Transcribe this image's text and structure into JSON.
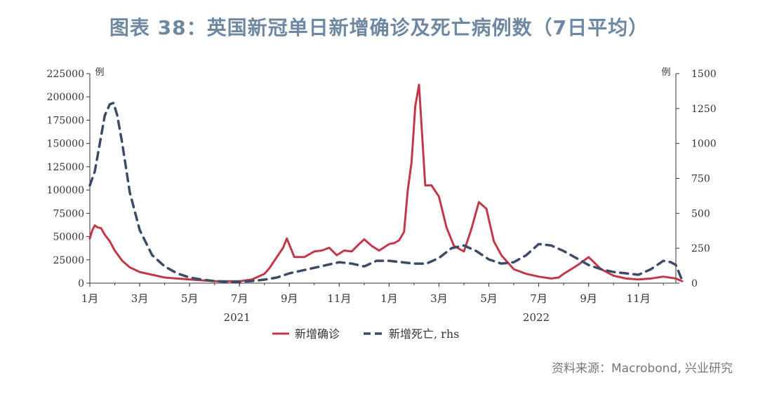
{
  "title": "图表 38：英国新冠单日新增确诊及死亡病例数（7日平均）",
  "source": "资料来源：Macrobond, 兴业研究",
  "colors": {
    "cases": "#c0394a",
    "deaths": "#3c4b66",
    "title": "#6f88a2",
    "axis": "#333333"
  },
  "chart_data": {
    "type": "line",
    "x_ticks": [
      "1月",
      "3月",
      "5月",
      "7月",
      "9月",
      "11月",
      "1月",
      "3月",
      "5月",
      "7月",
      "9月",
      "11月"
    ],
    "year_labels": [
      "2021",
      "2022"
    ],
    "y_left": {
      "unit_label": "例",
      "min": 0,
      "max": 225000,
      "ticks": [
        "0",
        "25000",
        "50000",
        "75000",
        "100000",
        "125000",
        "150000",
        "175000",
        "200000",
        "225000"
      ]
    },
    "y_right": {
      "unit_label": "例",
      "min": 0,
      "max": 1500,
      "ticks": [
        "0",
        "250",
        "500",
        "750",
        "1000",
        "1250",
        "1500"
      ]
    },
    "legend": {
      "placement": "bottom-center"
    },
    "series": [
      {
        "name": "新增确诊",
        "axis": "left",
        "style": "solid",
        "x": [
          0,
          0.1,
          0.2,
          0.3,
          0.45,
          0.6,
          0.8,
          1.0,
          1.3,
          1.6,
          2.0,
          2.5,
          3.0,
          3.5,
          4.0,
          4.5,
          5.0,
          5.5,
          6.0,
          6.5,
          7.0,
          7.2,
          7.4,
          7.6,
          7.75,
          7.9,
          8.2,
          8.6,
          9.0,
          9.3,
          9.6,
          9.9,
          10.2,
          10.5,
          10.8,
          11.0,
          11.3,
          11.6,
          12.0,
          12.2,
          12.4,
          12.6,
          12.75,
          12.9,
          13.05,
          13.2,
          13.45,
          13.7,
          14.0,
          14.3,
          14.6,
          15.0,
          15.3,
          15.6,
          15.9,
          16.2,
          16.5,
          17.0,
          17.5,
          18.0,
          18.5,
          18.8,
          19.0,
          19.3,
          19.6,
          20.0,
          20.5,
          21.0,
          21.5,
          22.0,
          22.5,
          23.0,
          23.5,
          23.75
        ],
        "y": [
          48000,
          57000,
          62000,
          60000,
          59000,
          52000,
          45000,
          35000,
          24000,
          17000,
          12000,
          9000,
          6000,
          5000,
          4000,
          3000,
          2000,
          2000,
          2000,
          4000,
          10000,
          16000,
          24000,
          32000,
          38000,
          48000,
          28000,
          28000,
          34000,
          35000,
          38000,
          30000,
          35000,
          34000,
          42000,
          47000,
          40000,
          35000,
          42000,
          43000,
          46000,
          55000,
          100000,
          130000,
          190000,
          213000,
          105000,
          105000,
          93000,
          60000,
          40000,
          34000,
          58000,
          87000,
          80000,
          45000,
          30000,
          15000,
          10000,
          7000,
          5000,
          6000,
          10000,
          15000,
          20000,
          28000,
          15000,
          8000,
          5000,
          4000,
          5000,
          7000,
          5000,
          2000
        ]
      },
      {
        "name": "新增死亡, rhs",
        "axis": "right",
        "style": "dashed",
        "x": [
          0,
          0.2,
          0.4,
          0.6,
          0.8,
          0.95,
          1.1,
          1.3,
          1.6,
          2.0,
          2.5,
          3.0,
          3.5,
          4.0,
          4.5,
          5.0,
          5.5,
          6.0,
          6.5,
          7.0,
          7.5,
          8.0,
          8.5,
          9.0,
          9.5,
          10.0,
          10.5,
          11.0,
          11.5,
          12.0,
          12.5,
          13.0,
          13.5,
          14.0,
          14.5,
          15.0,
          15.5,
          16.0,
          16.5,
          17.0,
          17.5,
          18.0,
          18.5,
          19.0,
          19.5,
          20.0,
          20.5,
          21.0,
          21.5,
          22.0,
          22.5,
          23.0,
          23.3,
          23.5,
          23.75
        ],
        "y": [
          700,
          800,
          1000,
          1200,
          1280,
          1290,
          1200,
          1000,
          650,
          380,
          200,
          120,
          70,
          40,
          25,
          15,
          10,
          10,
          15,
          25,
          40,
          70,
          90,
          110,
          130,
          150,
          140,
          120,
          160,
          160,
          150,
          140,
          140,
          180,
          250,
          270,
          230,
          170,
          140,
          150,
          200,
          280,
          270,
          230,
          180,
          130,
          100,
          80,
          70,
          60,
          100,
          160,
          150,
          130,
          20
        ]
      }
    ]
  }
}
